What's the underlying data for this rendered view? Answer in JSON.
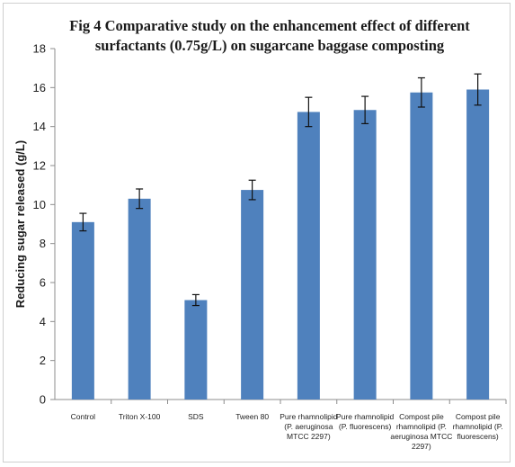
{
  "figure": {
    "title_line1": "Fig 4  Comparative study on the enhancement effect of different",
    "title_line2": "surfactants (0.75g/L) on sugarcane baggase composting"
  },
  "chart_data": {
    "type": "bar",
    "title": "Fig 4  Comparative study on the enhancement effect of different surfactants (0.75g/L) on sugarcane baggase composting",
    "xlabel": "",
    "ylabel": "Reducing sugar released  (g/L)",
    "ylim": [
      0,
      18
    ],
    "yticks": [
      "0",
      "2",
      "4",
      "6",
      "8",
      "10",
      "12",
      "14",
      "16",
      "18"
    ],
    "grid": false,
    "legend": "none",
    "bar_color": "#4f81bd",
    "categories": [
      [
        "Control"
      ],
      [
        "Triton X-100"
      ],
      [
        "SDS"
      ],
      [
        "Tween 80"
      ],
      [
        "Pure rhamnolipid",
        "(P. aeruginosa",
        "MTCC 2297)"
      ],
      [
        "Pure rhamnolipid",
        "(P. fluorescens)"
      ],
      [
        "Compost pile",
        "rhamnolipid (P.",
        "aeruginosa MTCC",
        "2297)"
      ],
      [
        "Compost pile",
        "rhamnolipid (P.",
        "fluorescens)"
      ]
    ],
    "values": [
      9.1,
      10.3,
      5.1,
      10.75,
      14.75,
      14.85,
      15.75,
      15.9
    ],
    "errors": [
      0.45,
      0.5,
      0.28,
      0.5,
      0.75,
      0.7,
      0.75,
      0.8
    ]
  }
}
